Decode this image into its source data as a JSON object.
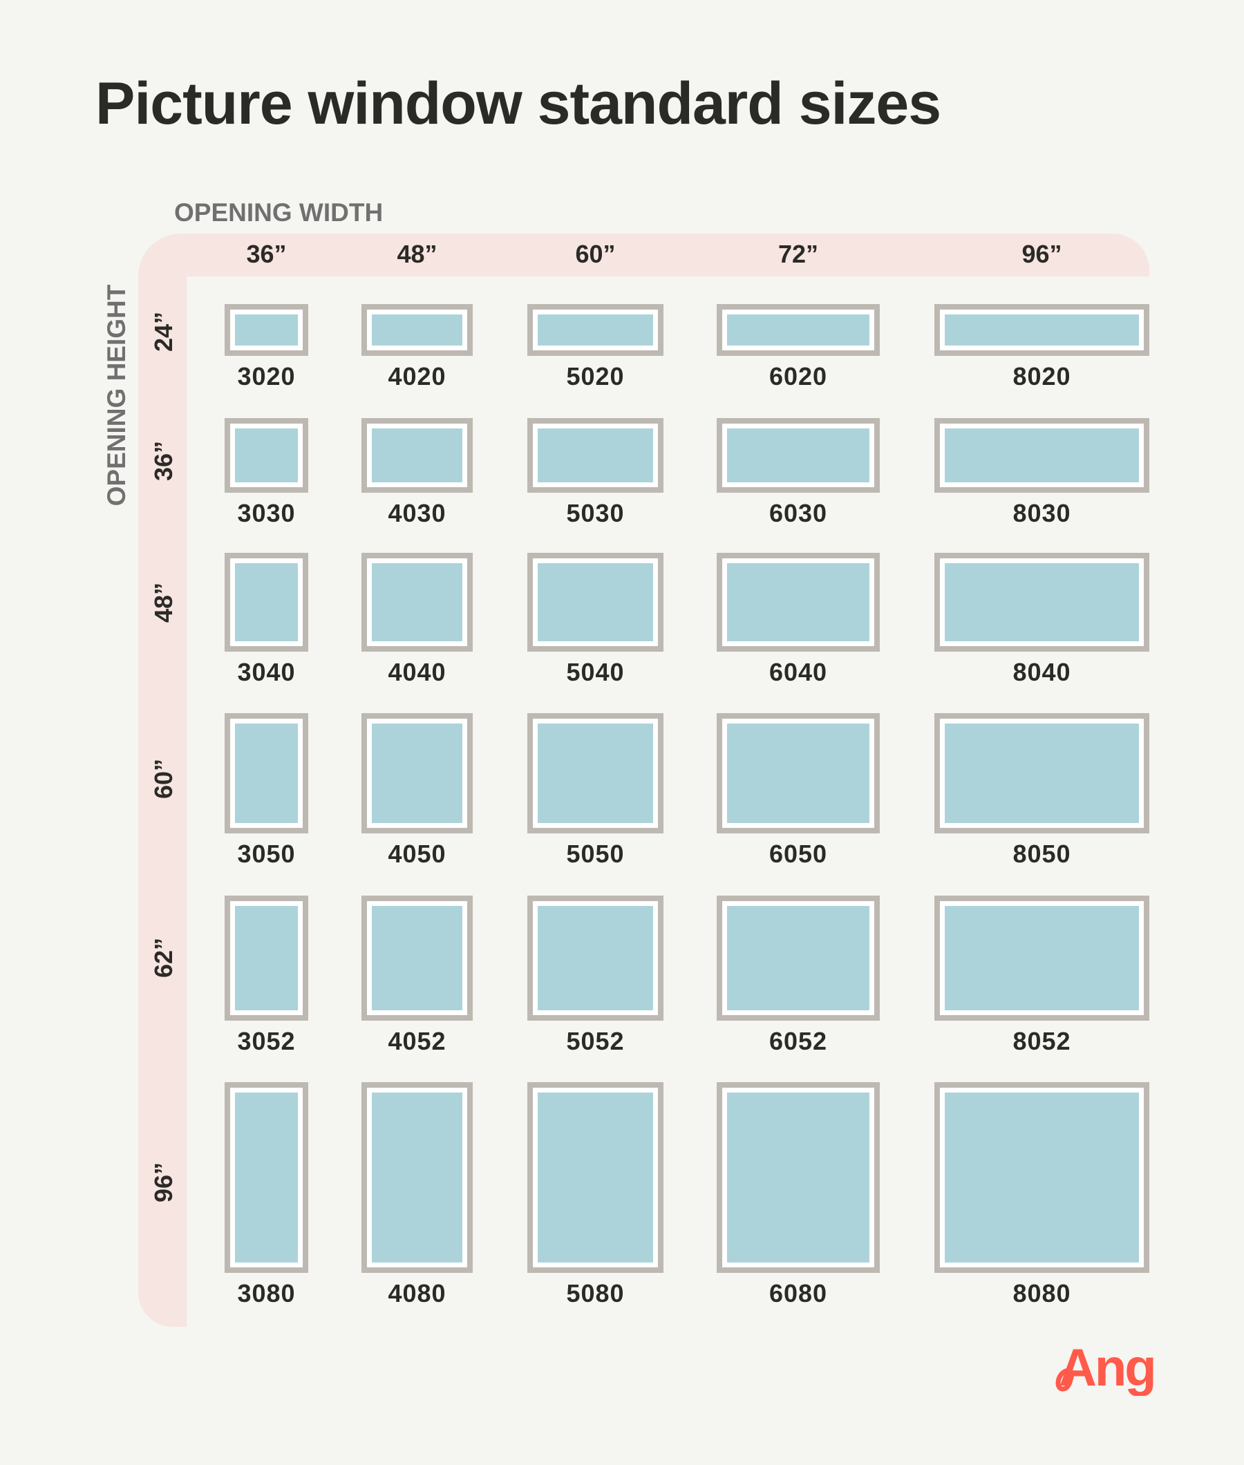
{
  "title": "Picture window standard sizes",
  "width_axis_label": "OPENING WIDTH",
  "height_axis_label": "OPENING HEIGHT",
  "widths": [
    "36”",
    "48”",
    "60”",
    "72”",
    "96”"
  ],
  "heights": [
    "24”",
    "36”",
    "48”",
    "60”",
    "62”",
    "96”"
  ],
  "codes": [
    [
      "3020",
      "4020",
      "5020",
      "6020",
      "8020"
    ],
    [
      "3030",
      "4030",
      "5030",
      "6030",
      "8030"
    ],
    [
      "3040",
      "4040",
      "5040",
      "6040",
      "8040"
    ],
    [
      "3050",
      "4050",
      "5050",
      "6050",
      "8050"
    ],
    [
      "3052",
      "4052",
      "5052",
      "6052",
      "8052"
    ],
    [
      "3080",
      "4080",
      "5080",
      "6080",
      "8080"
    ]
  ],
  "colors": {
    "background": "#f5f5f1",
    "band": "#f7e5e1",
    "frame": "#bdb8b2",
    "glass": "#acd3da",
    "logo": "#ff5a4a"
  },
  "logo": {
    "text": "Angi",
    "icon": "angi-logo"
  }
}
